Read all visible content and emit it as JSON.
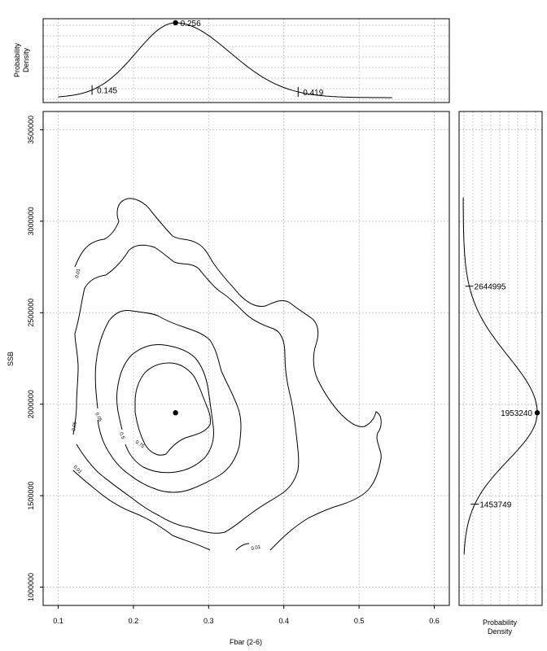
{
  "chart_data": {
    "type": "contour",
    "xlabel": "Fbar (2-6)",
    "ylabel": "SSB",
    "xlim": [
      0.08,
      0.62
    ],
    "ylim": [
      900000,
      3600000
    ],
    "x_ticks": [
      "0.1",
      "0.2",
      "0.3",
      "0.4",
      "0.5",
      "0.6"
    ],
    "y_ticks": [
      "1000000",
      "1500000",
      "2000000",
      "2500000",
      "3000000",
      "3500000"
    ],
    "grid": true,
    "point_estimate": {
      "fbar": 0.256,
      "ssb": 1953240
    },
    "contour_levels": [
      "0.01",
      "0.05",
      "0.5",
      "0.75"
    ],
    "top_marginal": {
      "ylabel": "Probability Density",
      "mode": 0.256,
      "mode_label": "0.256",
      "lower": 0.145,
      "lower_label": "0.145",
      "upper": 0.419,
      "upper_label": "0.419"
    },
    "right_marginal": {
      "xlabel": "Probability Density",
      "mode": 1953240,
      "mode_label": "1953240",
      "lower": 1453749,
      "lower_label": "1453749",
      "upper": 2644995,
      "upper_label": "2644995"
    }
  }
}
